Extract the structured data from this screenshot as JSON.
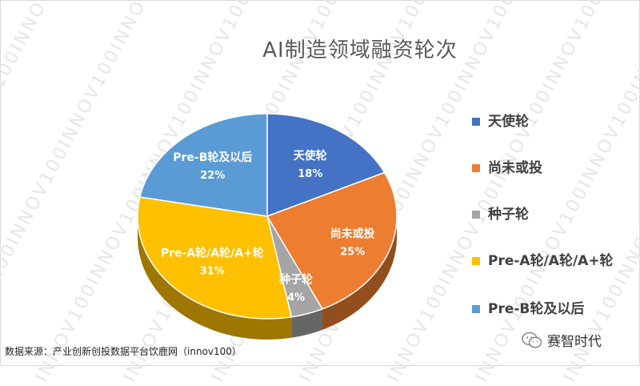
{
  "chart_data": {
    "type": "pie",
    "title": "AI制造领域融资轮次",
    "slices": [
      {
        "label": "天使轮",
        "value": 18,
        "value_label": "18%",
        "color": "#4472C4"
      },
      {
        "label": "尚未或投",
        "value": 25,
        "value_label": "25%",
        "color": "#ED7D31"
      },
      {
        "label": "种子轮",
        "value": 4,
        "value_label": "4%",
        "color": "#A5A5A5"
      },
      {
        "label": "Pre-A轮/A轮/A+轮",
        "value": 31,
        "value_label": "31%",
        "color": "#FFC000"
      },
      {
        "label": "Pre-B轮及以后",
        "value": 22,
        "value_label": "22%",
        "color": "#5B9BD5"
      }
    ],
    "legend_position": "right",
    "style": "3d"
  },
  "footer": {
    "source": "数据来源：产业创新创投数据平台饮鹿网（innov100）",
    "brand": "赛智时代"
  },
  "watermark": {
    "text": "INNOV100INNOV100INNOV100INNOV100"
  },
  "icons": {
    "brand": "wechat-icon"
  }
}
